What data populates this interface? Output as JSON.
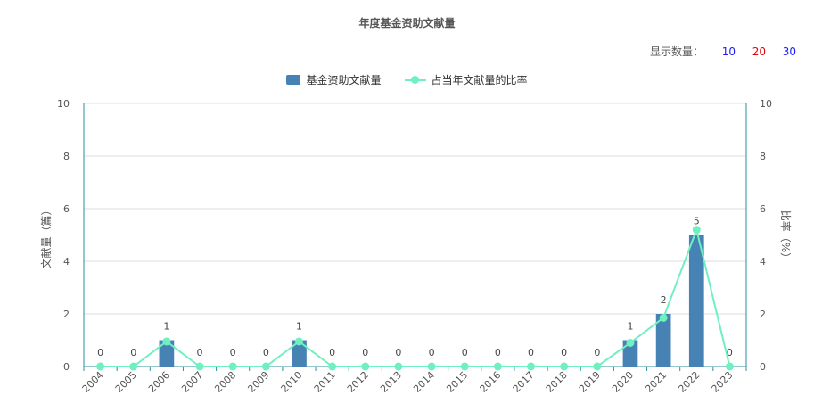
{
  "title": "年度基金资助文献量",
  "display_count": {
    "label": "显示数量：",
    "options": [
      "10",
      "20",
      "30"
    ],
    "option_colors": [
      "#1a1aff",
      "#e8000b",
      "#1a1aff"
    ]
  },
  "legend": {
    "items": [
      {
        "name": "基金资助文献量",
        "color": "#4682b4",
        "kind": "bar"
      },
      {
        "name": "占当年文献量的比率",
        "color": "#6ef0c0",
        "kind": "line"
      }
    ]
  },
  "chart_data": {
    "type": "bar",
    "categories": [
      "2004",
      "2005",
      "2006",
      "2007",
      "2008",
      "2009",
      "2010",
      "2011",
      "2012",
      "2013",
      "2014",
      "2015",
      "2016",
      "2017",
      "2018",
      "2019",
      "2020",
      "2021",
      "2022",
      "2023"
    ],
    "series": [
      {
        "name": "基金资助文献量",
        "type": "bar",
        "axis": "left",
        "color": "#4682b4",
        "values": [
          0,
          0,
          1,
          0,
          0,
          0,
          1,
          0,
          0,
          0,
          0,
          0,
          0,
          0,
          0,
          0,
          1,
          2,
          5,
          0
        ]
      },
      {
        "name": "占当年文献量的比率",
        "type": "line",
        "axis": "right",
        "color": "#6ef0c0",
        "values": [
          0,
          0,
          0.95,
          0,
          0,
          0,
          0.95,
          0,
          0,
          0,
          0,
          0,
          0,
          0,
          0,
          0,
          0.9,
          1.85,
          5.2,
          0
        ]
      }
    ],
    "ylabel_left": "文献量（篇）",
    "ylabel_right": "比率（%）",
    "ylim_left": [
      0,
      10
    ],
    "ylim_right": [
      0,
      10
    ],
    "yticks": [
      0,
      2,
      4,
      6,
      8,
      10
    ],
    "grid": true,
    "legend_position": "top-center"
  }
}
